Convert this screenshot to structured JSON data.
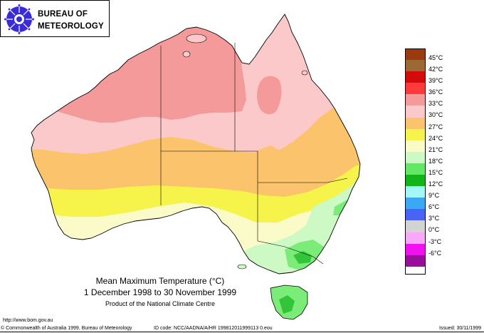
{
  "logo": {
    "line1": "BUREAU OF",
    "line2": "METEOROLOGY",
    "emblem_color": "#3a2cd4"
  },
  "map": {
    "regions": [
      {
        "name": "33-36",
        "color": "#f49a9a"
      },
      {
        "name": "30-33",
        "color": "#fbc9c9"
      },
      {
        "name": "27-30",
        "color": "#fbc36b"
      },
      {
        "name": "24-27",
        "color": "#f6f44a"
      },
      {
        "name": "21-24",
        "color": "#fbfbc9"
      },
      {
        "name": "18-21",
        "color": "#cdf9c4"
      },
      {
        "name": "15-18",
        "color": "#7bec78"
      },
      {
        "name": "12-15",
        "color": "#33c43a"
      }
    ]
  },
  "legend": {
    "items": [
      {
        "label": "45°C",
        "color": "#9b3a10"
      },
      {
        "label": "42°C",
        "color": "#9b6a34"
      },
      {
        "label": "39°C",
        "color": "#d30b0b"
      },
      {
        "label": "36°C",
        "color": "#ff3a3a"
      },
      {
        "label": "33°C",
        "color": "#f49a9a"
      },
      {
        "label": "30°C",
        "color": "#fbc9c9"
      },
      {
        "label": "27°C",
        "color": "#fbc36b"
      },
      {
        "label": "24°C",
        "color": "#f6f44a"
      },
      {
        "label": "21°C",
        "color": "#fbfbc9"
      },
      {
        "label": "18°C",
        "color": "#cdf9c4"
      },
      {
        "label": "15°C",
        "color": "#62e862"
      },
      {
        "label": "12°C",
        "color": "#12b518"
      },
      {
        "label": "9°C",
        "color": "#a2f7f7"
      },
      {
        "label": "6°C",
        "color": "#3aa7f7"
      },
      {
        "label": "3°C",
        "color": "#4a63f7"
      },
      {
        "label": "0°C",
        "color": "#d3d3d3"
      },
      {
        "label": "-3°C",
        "color": "#f8a8f8"
      },
      {
        "label": "-6°C",
        "color": "#f010f0"
      },
      {
        "label": "",
        "color": "#9b0d9b"
      }
    ]
  },
  "title": {
    "line1": "Mean Maximum Temperature (°C)",
    "line2": "1 December 1998 to 30 November 1999",
    "subtitle": "Product of the National Climate Centre"
  },
  "footer": {
    "url": "http://www.bom.gov.au",
    "copyright": "© Commonwealth of Australia 1999, Bureau of Meteorology",
    "id": "ID code: NCC/AADNA/A/HR 199812011999113 0.eou",
    "issued": "Issued: 30/11/1999"
  }
}
